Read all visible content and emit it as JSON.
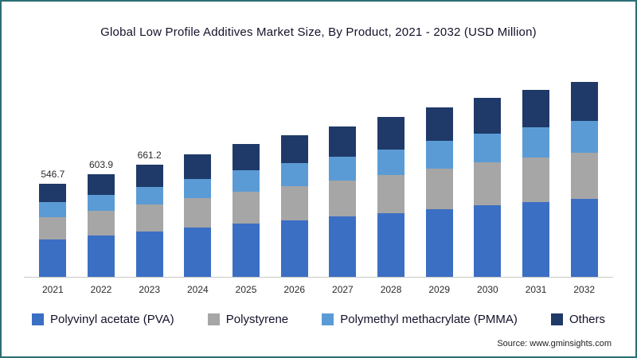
{
  "title": "Global Low Profile Additives Market Size, By Product, 2021 - 2032 (USD Million)",
  "source_text": "Source: www.gminsights.com",
  "frame_border_color": "#2a6f74",
  "chart_data": {
    "type": "bar",
    "stacked": true,
    "title": "Global Low Profile Additives Market Size, By Product, 2021 - 2032 (USD Million)",
    "xlabel": "",
    "ylabel": "USD Million",
    "legend_position": "bottom",
    "grid": false,
    "categories": [
      "2021",
      "2022",
      "2023",
      "2024",
      "2025",
      "2026",
      "2027",
      "2028",
      "2029",
      "2030",
      "2031",
      "2032"
    ],
    "series": [
      {
        "name": "Polyvinyl acetate (PVA)",
        "color": "#3b6fc4",
        "values": [
          218.7,
          241.6,
          264.5,
          288.0,
          313.0,
          333.0,
          354.0,
          375.0,
          399.0,
          421.0,
          439.0,
          457.0
        ]
      },
      {
        "name": "Polystyrene",
        "color": "#a6a6a6",
        "values": [
          131.2,
          144.9,
          158.7,
          173.0,
          188.0,
          200.0,
          212.0,
          225.0,
          239.0,
          252.0,
          264.0,
          274.0
        ]
      },
      {
        "name": "Polymethyl methacrylate (PMMA)",
        "color": "#5b9bd5",
        "values": [
          87.5,
          96.6,
          105.8,
          115.0,
          125.0,
          133.0,
          141.0,
          150.0,
          160.0,
          168.0,
          176.0,
          183.0
        ]
      },
      {
        "name": "Others",
        "color": "#1f3a68",
        "values": [
          109.3,
          120.8,
          132.2,
          144.0,
          156.0,
          167.0,
          177.0,
          188.0,
          199.0,
          211.0,
          219.0,
          229.0
        ]
      }
    ],
    "totals": [
      546.7,
      603.9,
      661.2,
      720.0,
      782.0,
      833.0,
      884.0,
      938.0,
      997.0,
      1052.0,
      1098.0,
      1143.0
    ],
    "data_labels": {
      "2021": "546.7",
      "2022": "603.9",
      "2023": "661.2"
    }
  },
  "legend": {
    "items": [
      {
        "label": "Polyvinyl acetate (PVA)"
      },
      {
        "label": "Polystyrene"
      },
      {
        "label": "Polymethyl methacrylate (PMMA)"
      },
      {
        "label": "Others"
      }
    ]
  }
}
